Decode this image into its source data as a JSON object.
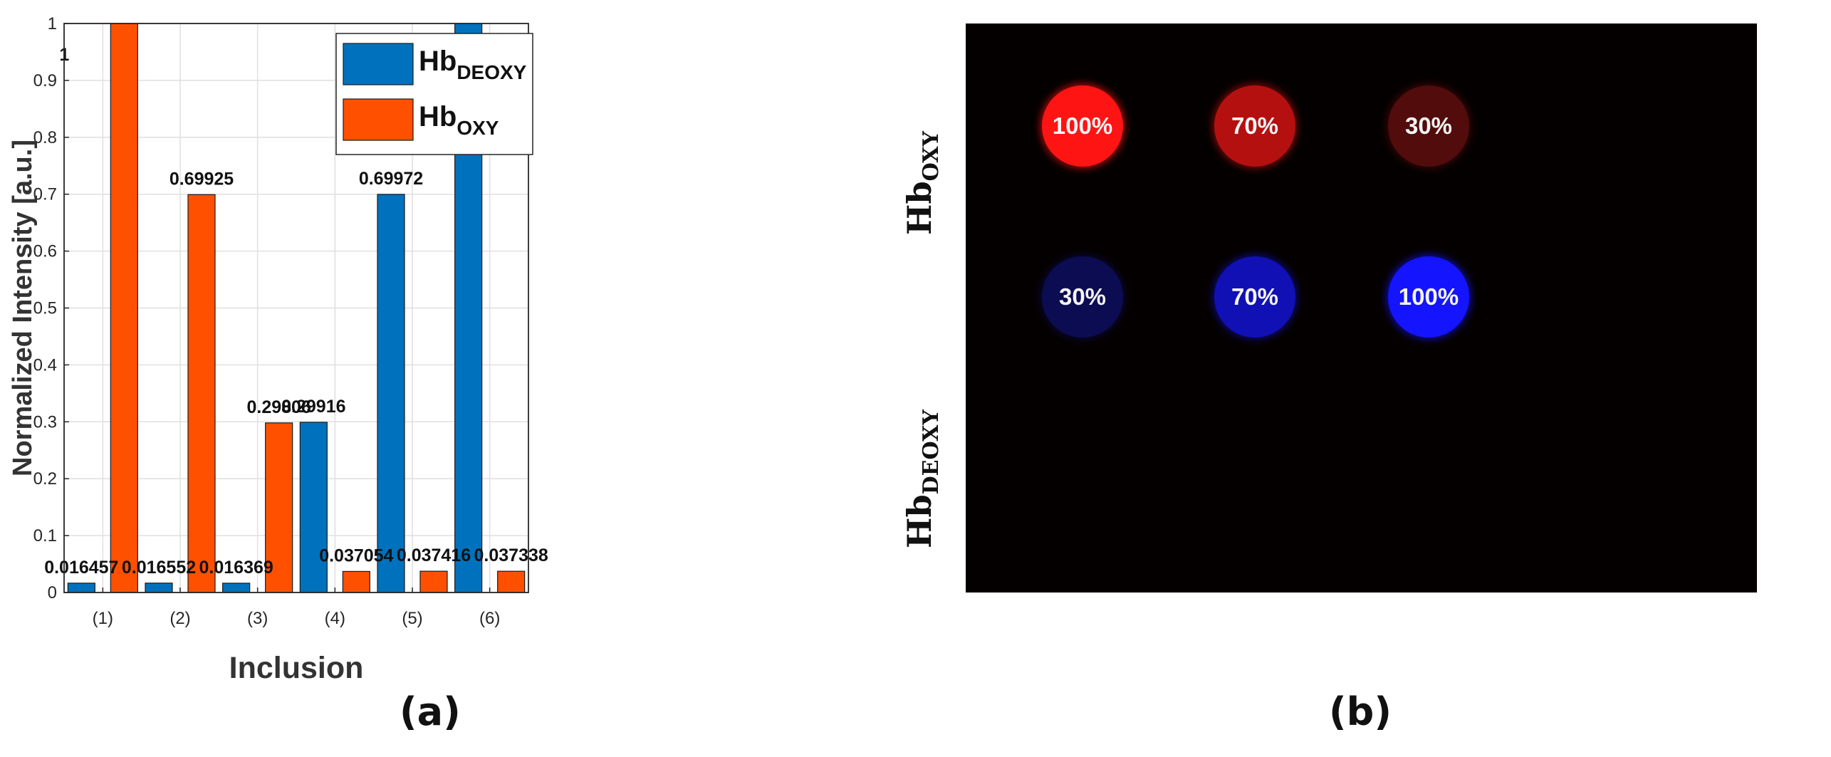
{
  "chart_data": {
    "type": "bar",
    "xlabel": "Inclusion",
    "ylabel": "Normalized Intensity [a.u.]",
    "categories": [
      "(1)",
      "(2)",
      "(3)",
      "(4)",
      "(5)",
      "(6)"
    ],
    "ylim": [
      0,
      1
    ],
    "yticks": [
      "0",
      "0.1",
      "0.2",
      "0.3",
      "0.4",
      "0.5",
      "0.6",
      "0.7",
      "0.8",
      "0.9",
      "1"
    ],
    "legend_position": "top-center",
    "series": [
      {
        "name": "Hb",
        "subscript": "DEOXY",
        "color": "#0072BD",
        "values": [
          0.016457,
          0.016552,
          0.016369,
          0.29916,
          0.69972,
          1
        ],
        "labels": [
          "0.016457",
          "0.016552",
          "0.016369",
          "0.29916",
          "0.69972",
          "1"
        ]
      },
      {
        "name": "Hb",
        "subscript": "OXY",
        "color": "#FF5000",
        "values": [
          1,
          0.69925,
          0.29806,
          0.037054,
          0.037416,
          0.037338
        ],
        "labels": [
          "1",
          "0.69925",
          "0.29806",
          "0.037054",
          "0.037416",
          "0.037338"
        ]
      }
    ]
  },
  "panel_labels": {
    "a": "(a)",
    "b": "(b)"
  },
  "panel_b": {
    "rows": [
      {
        "label_main": "Hb",
        "label_sub": "OXY",
        "color": "#ff0000",
        "cells": [
          {
            "text": "100%",
            "intensity": 1.0
          },
          {
            "text": "70%",
            "intensity": 0.7
          },
          {
            "text": "30%",
            "intensity": 0.3
          }
        ]
      },
      {
        "label_main": "Hb",
        "label_sub": "DEOXY",
        "color": "#0000ff",
        "cells": [
          {
            "text": "30%",
            "intensity": 0.3
          },
          {
            "text": "70%",
            "intensity": 0.7
          },
          {
            "text": "100%",
            "intensity": 1.0
          }
        ]
      }
    ]
  }
}
